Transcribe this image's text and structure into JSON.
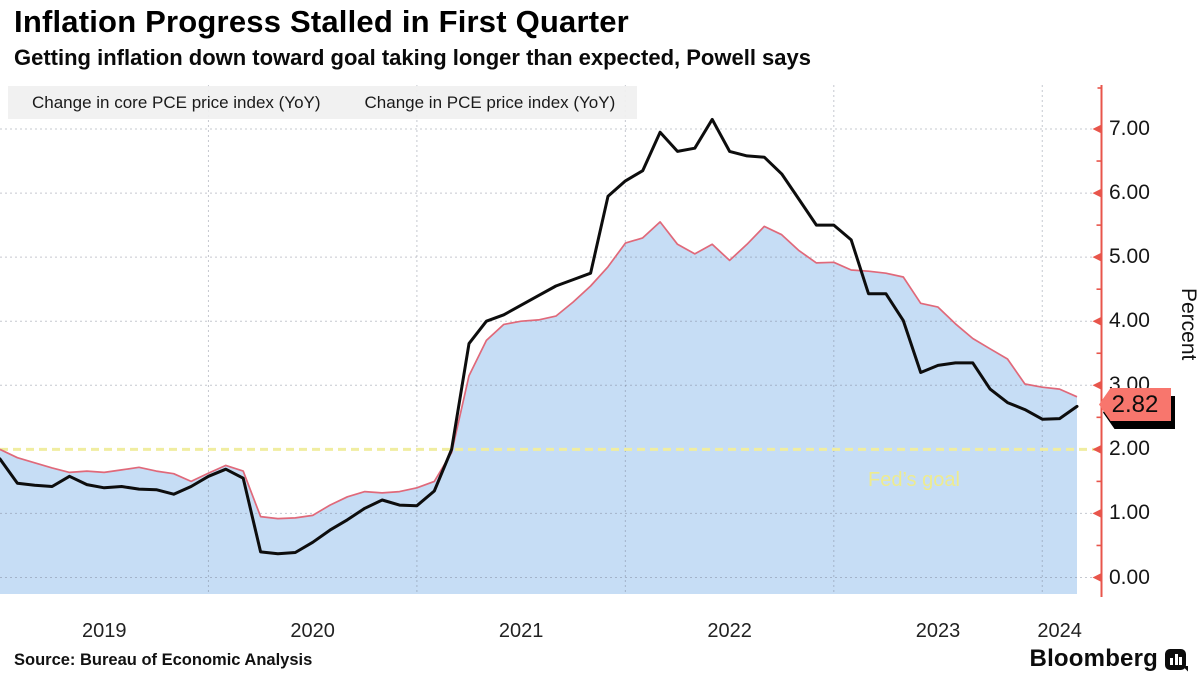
{
  "header": {
    "title": "Inflation Progress Stalled in First Quarter",
    "subtitle": "Getting inflation down toward goal taking longer than expected, Powell says"
  },
  "legend": [
    {
      "label": "Change in core PCE price index (YoY)",
      "color": "#f8766d"
    },
    {
      "label": "Change in PCE price index (YoY)",
      "color": "#000000"
    }
  ],
  "chart_data": {
    "type": "area",
    "frequency": "monthly",
    "x_start": "2019-01",
    "x_end": "2024-03",
    "x_tick_labels": [
      "2019",
      "2020",
      "2021",
      "2022",
      "2023",
      "2024"
    ],
    "y_tick_labels": [
      "7.00",
      "6.00",
      "5.00",
      "4.00",
      "3.00",
      "2.00",
      "1.00",
      "0.00"
    ],
    "y_tick_values": [
      7,
      6,
      5,
      4,
      3,
      2,
      1,
      0
    ],
    "ylabel": "Percent",
    "ylim": [
      0,
      7.7
    ],
    "grid": true,
    "series": [
      {
        "name": "Change in core PCE price index (YoY)",
        "style": "area",
        "line_color": "#e0697a",
        "fill_color": "#c6ddf5",
        "values": [
          2.0,
          1.87,
          1.79,
          1.71,
          1.64,
          1.66,
          1.64,
          1.68,
          1.72,
          1.66,
          1.62,
          1.5,
          1.63,
          1.75,
          1.66,
          0.95,
          0.92,
          0.93,
          0.97,
          1.13,
          1.26,
          1.34,
          1.32,
          1.34,
          1.4,
          1.5,
          1.95,
          3.15,
          3.7,
          3.95,
          4.0,
          4.02,
          4.08,
          4.3,
          4.55,
          4.85,
          5.22,
          5.3,
          5.55,
          5.2,
          5.05,
          5.2,
          4.95,
          5.2,
          5.48,
          5.35,
          5.1,
          4.91,
          4.92,
          4.8,
          4.78,
          4.75,
          4.69,
          4.28,
          4.22,
          3.96,
          3.73,
          3.57,
          3.41,
          3.02,
          2.97,
          2.94,
          2.82
        ]
      },
      {
        "name": "Change in PCE price index (YoY)",
        "style": "line",
        "line_color": "#0d0d0d",
        "values": [
          1.85,
          1.47,
          1.44,
          1.42,
          1.58,
          1.45,
          1.4,
          1.42,
          1.38,
          1.37,
          1.3,
          1.42,
          1.58,
          1.69,
          1.55,
          0.4,
          0.37,
          0.39,
          0.55,
          0.74,
          0.9,
          1.08,
          1.21,
          1.13,
          1.12,
          1.35,
          2.0,
          3.65,
          4.0,
          4.1,
          4.25,
          4.4,
          4.55,
          4.65,
          4.75,
          5.95,
          6.19,
          6.35,
          6.95,
          6.65,
          6.7,
          7.15,
          6.65,
          6.58,
          6.56,
          6.3,
          5.9,
          5.5,
          5.5,
          5.27,
          4.43,
          4.43,
          4.01,
          3.2,
          3.31,
          3.35,
          3.35,
          2.94,
          2.73,
          2.62,
          2.47,
          2.48,
          2.67
        ]
      }
    ],
    "reference_line": {
      "value": 2.0,
      "label": "Fed’s goal",
      "color": "#f0eda0"
    },
    "end_label": {
      "value": "2.82",
      "color": "#f8766d"
    },
    "axis_color": "#e8554b",
    "legend_position": "top-left"
  },
  "footer": {
    "source": "Source: Bureau of Economic Analysis",
    "brand": "Bloomberg"
  }
}
